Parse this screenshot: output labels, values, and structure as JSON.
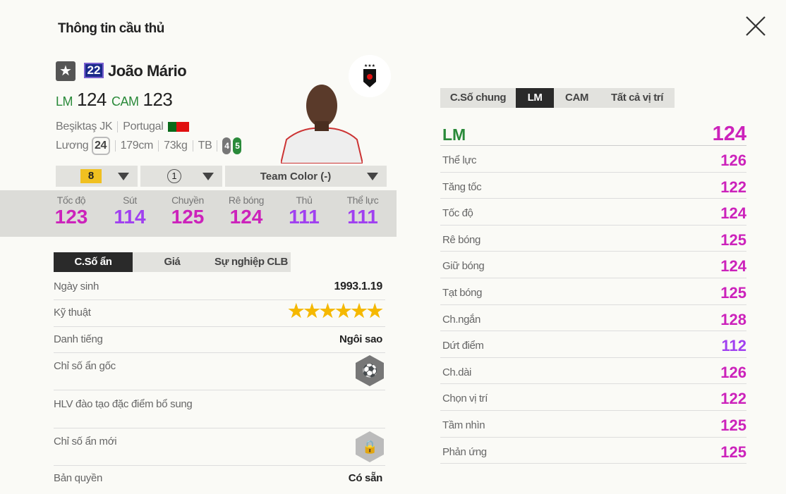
{
  "title": "Thông tin cầu thủ",
  "player": {
    "season_icon": "star-icon",
    "number": "22",
    "name": "João Mário",
    "positions": [
      {
        "pos": "LM",
        "ovr": "124"
      },
      {
        "pos": "CAM",
        "ovr": "123"
      }
    ],
    "club": "Beşiktaş JK",
    "nation": "Portugal",
    "salary_label": "Lương",
    "salary": "24",
    "height": "179cm",
    "weight": "73kg",
    "body": "TB",
    "weak_foot": "4",
    "strong_foot": "5"
  },
  "selectors": {
    "upgrade": "8",
    "level": "1",
    "team_color": "Team Color (-)"
  },
  "summary_stats": [
    {
      "label": "Tốc độ",
      "value": "123"
    },
    {
      "label": "Sút",
      "value": "114"
    },
    {
      "label": "Chuyền",
      "value": "125"
    },
    {
      "label": "Rê bóng",
      "value": "124"
    },
    {
      "label": "Thủ",
      "value": "111"
    },
    {
      "label": "Thể lực",
      "value": "111"
    }
  ],
  "left_tabs": [
    "C.Số ẩn",
    "Giá",
    "Sự nghiệp CLB"
  ],
  "details": {
    "birth_label": "Ngày sinh",
    "birth": "1993.1.19",
    "skill_label": "Kỹ thuật",
    "skill_stars": 6,
    "rep_label": "Danh tiếng",
    "rep": "Ngôi sao",
    "hidden_label": "Chỉ số ẩn gốc",
    "coach_label": "HLV đào tạo đặc điểm bổ sung",
    "new_hidden_label": "Chỉ số ẩn mới",
    "license_label": "Bản quyền",
    "license": "Có sẵn"
  },
  "right_tabs": [
    "C.Số chung",
    "LM",
    "CAM",
    "Tất cả vị trí"
  ],
  "right_header": {
    "pos": "LM",
    "value": "124"
  },
  "right_stats": [
    {
      "label": "Thể lực",
      "value": "126"
    },
    {
      "label": "Tăng tốc",
      "value": "122"
    },
    {
      "label": "Tốc độ",
      "value": "124"
    },
    {
      "label": "Rê bóng",
      "value": "125"
    },
    {
      "label": "Giữ bóng",
      "value": "124"
    },
    {
      "label": "Tạt bóng",
      "value": "125"
    },
    {
      "label": "Ch.ngắn",
      "value": "128"
    },
    {
      "label": "Dứt điểm",
      "value": "112"
    },
    {
      "label": "Ch.dài",
      "value": "126"
    },
    {
      "label": "Chọn vị trí",
      "value": "122"
    },
    {
      "label": "Tầm nhìn",
      "value": "125"
    },
    {
      "label": "Phản ứng",
      "value": "125"
    }
  ],
  "colors": {
    "stat_high": "#cc22bb",
    "stat_mid": "#a040f0",
    "position": "#2a8a3a"
  }
}
